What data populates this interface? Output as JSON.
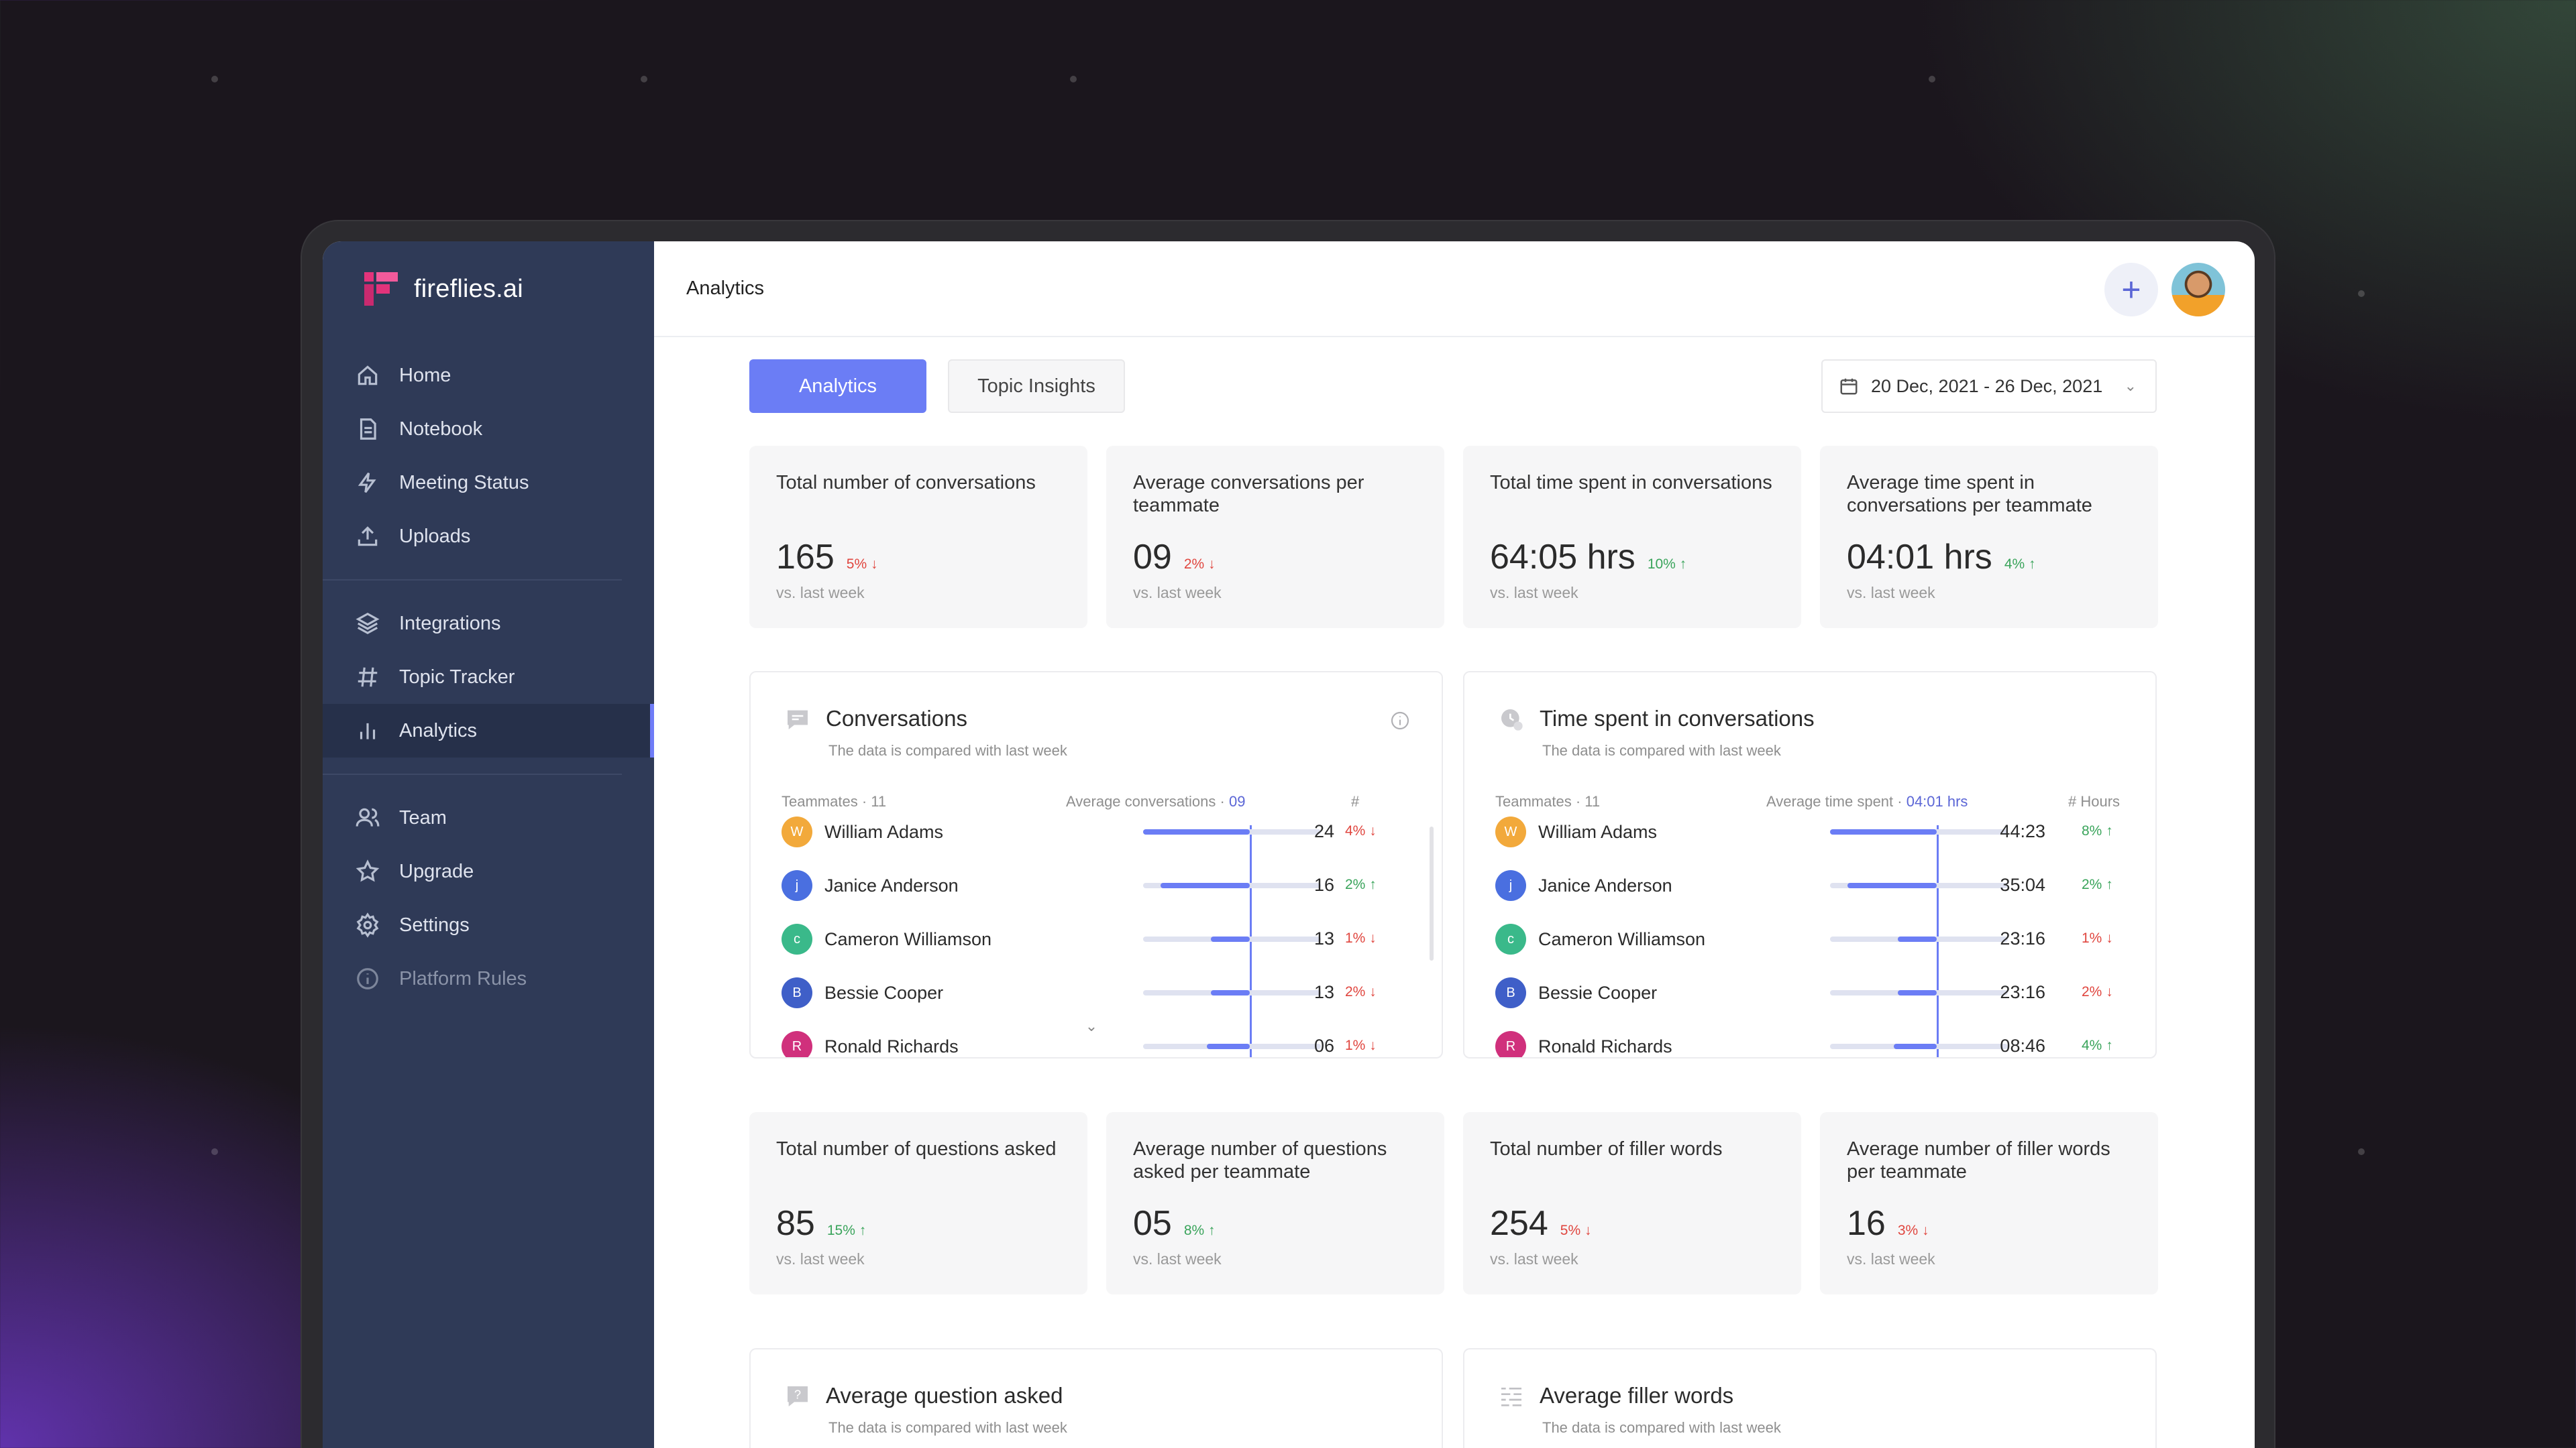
{
  "app": {
    "name": "fireflies.ai",
    "brand_color": "#e3337b",
    "accent": "#6b7df5"
  },
  "sidebar": {
    "items": [
      {
        "label": "Home",
        "icon": "home-icon"
      },
      {
        "label": "Notebook",
        "icon": "document-icon"
      },
      {
        "label": "Meeting Status",
        "icon": "lightning-icon"
      },
      {
        "label": "Uploads",
        "icon": "upload-icon"
      },
      {
        "label": "Integrations",
        "icon": "layers-icon"
      },
      {
        "label": "Topic Tracker",
        "icon": "hashtag-icon"
      },
      {
        "label": "Analytics",
        "icon": "bar-chart-icon",
        "active": true
      },
      {
        "label": "Team",
        "icon": "users-icon"
      },
      {
        "label": "Upgrade",
        "icon": "star-icon"
      },
      {
        "label": "Settings",
        "icon": "gear-icon"
      },
      {
        "label": "Platform Rules",
        "icon": "info-icon"
      }
    ]
  },
  "header": {
    "title": "Analytics"
  },
  "tabs": {
    "analytics": "Analytics",
    "topic_insights": "Topic Insights"
  },
  "date_range": "20 Dec, 2021 - 26 Dec, 2021",
  "stats_top": [
    {
      "label": "Total number of conversations",
      "value": "165",
      "delta": "5%",
      "dir": "down",
      "sub": "vs. last week"
    },
    {
      "label": "Average conversations per teammate",
      "value": "09",
      "delta": "2%",
      "dir": "down",
      "sub": "vs. last week"
    },
    {
      "label": "Total time spent in conversations",
      "value": "64:05 hrs",
      "delta": "10%",
      "dir": "up",
      "sub": "vs. last week"
    },
    {
      "label": "Average time spent in conversations per teammate",
      "value": "04:01 hrs",
      "delta": "4%",
      "dir": "up",
      "sub": "vs. last week"
    }
  ],
  "conversations": {
    "title": "Conversations",
    "subtitle": "The data is compared with last week",
    "col_teammates": "Teammates · 11",
    "col_avg_label": "Average conversations · ",
    "col_avg_value": "09",
    "col_num": "#",
    "rows": [
      {
        "initial": "W",
        "name": "William Adams",
        "value": "24",
        "delta": "4%",
        "dir": "down",
        "color": "#f2a93b",
        "bar": 0.6
      },
      {
        "initial": "j",
        "name": "Janice Anderson",
        "value": "16",
        "delta": "2%",
        "dir": "up",
        "color": "#4a6fe0",
        "bar": 0.5
      },
      {
        "initial": "c",
        "name": "Cameron Williamson",
        "value": "13",
        "delta": "1%",
        "dir": "down",
        "color": "#3ab98a",
        "bar": 0.22
      },
      {
        "initial": "B",
        "name": "Bessie Cooper",
        "value": "13",
        "delta": "2%",
        "dir": "down",
        "color": "#3f5fc8",
        "bar": 0.22
      },
      {
        "initial": "R",
        "name": "Ronald Richards",
        "value": "06",
        "delta": "1%",
        "dir": "down",
        "color": "#d0307c",
        "bar": 0.24
      }
    ]
  },
  "time_spent": {
    "title": "Time spent in conversations",
    "subtitle": "The data is compared with last week",
    "col_teammates": "Teammates · 11",
    "col_avg_label": "Average time spent · ",
    "col_avg_value": "04:01 hrs",
    "col_num": "# Hours",
    "rows": [
      {
        "initial": "W",
        "name": "William Adams",
        "value": "44:23",
        "delta": "8%",
        "dir": "up",
        "color": "#f2a93b",
        "bar": 0.6
      },
      {
        "initial": "j",
        "name": "Janice Anderson",
        "value": "35:04",
        "delta": "2%",
        "dir": "up",
        "color": "#4a6fe0",
        "bar": 0.5
      },
      {
        "initial": "c",
        "name": "Cameron Williamson",
        "value": "23:16",
        "delta": "1%",
        "dir": "down",
        "color": "#3ab98a",
        "bar": 0.22
      },
      {
        "initial": "B",
        "name": "Bessie Cooper",
        "value": "23:16",
        "delta": "2%",
        "dir": "down",
        "color": "#3f5fc8",
        "bar": 0.22
      },
      {
        "initial": "R",
        "name": "Ronald Richards",
        "value": "08:46",
        "delta": "4%",
        "dir": "up",
        "color": "#d0307c",
        "bar": 0.24
      }
    ]
  },
  "stats_bottom": [
    {
      "label": "Total number of questions asked",
      "value": "85",
      "delta": "15%",
      "dir": "up",
      "sub": "vs. last week"
    },
    {
      "label": "Average number of questions asked per teammate",
      "value": "05",
      "delta": "8%",
      "dir": "up",
      "sub": "vs. last week"
    },
    {
      "label": "Total number of filler words",
      "value": "254",
      "delta": "5%",
      "dir": "down",
      "sub": "vs. last week"
    },
    {
      "label": "Average number of filler words per teammate",
      "value": "16",
      "delta": "3%",
      "dir": "down",
      "sub": "vs. last week"
    }
  ],
  "avg_question": {
    "title": "Average question asked",
    "subtitle": "The data is compared with last week"
  },
  "avg_filler": {
    "title": "Average filler words",
    "subtitle": "The data is compared with last week"
  }
}
